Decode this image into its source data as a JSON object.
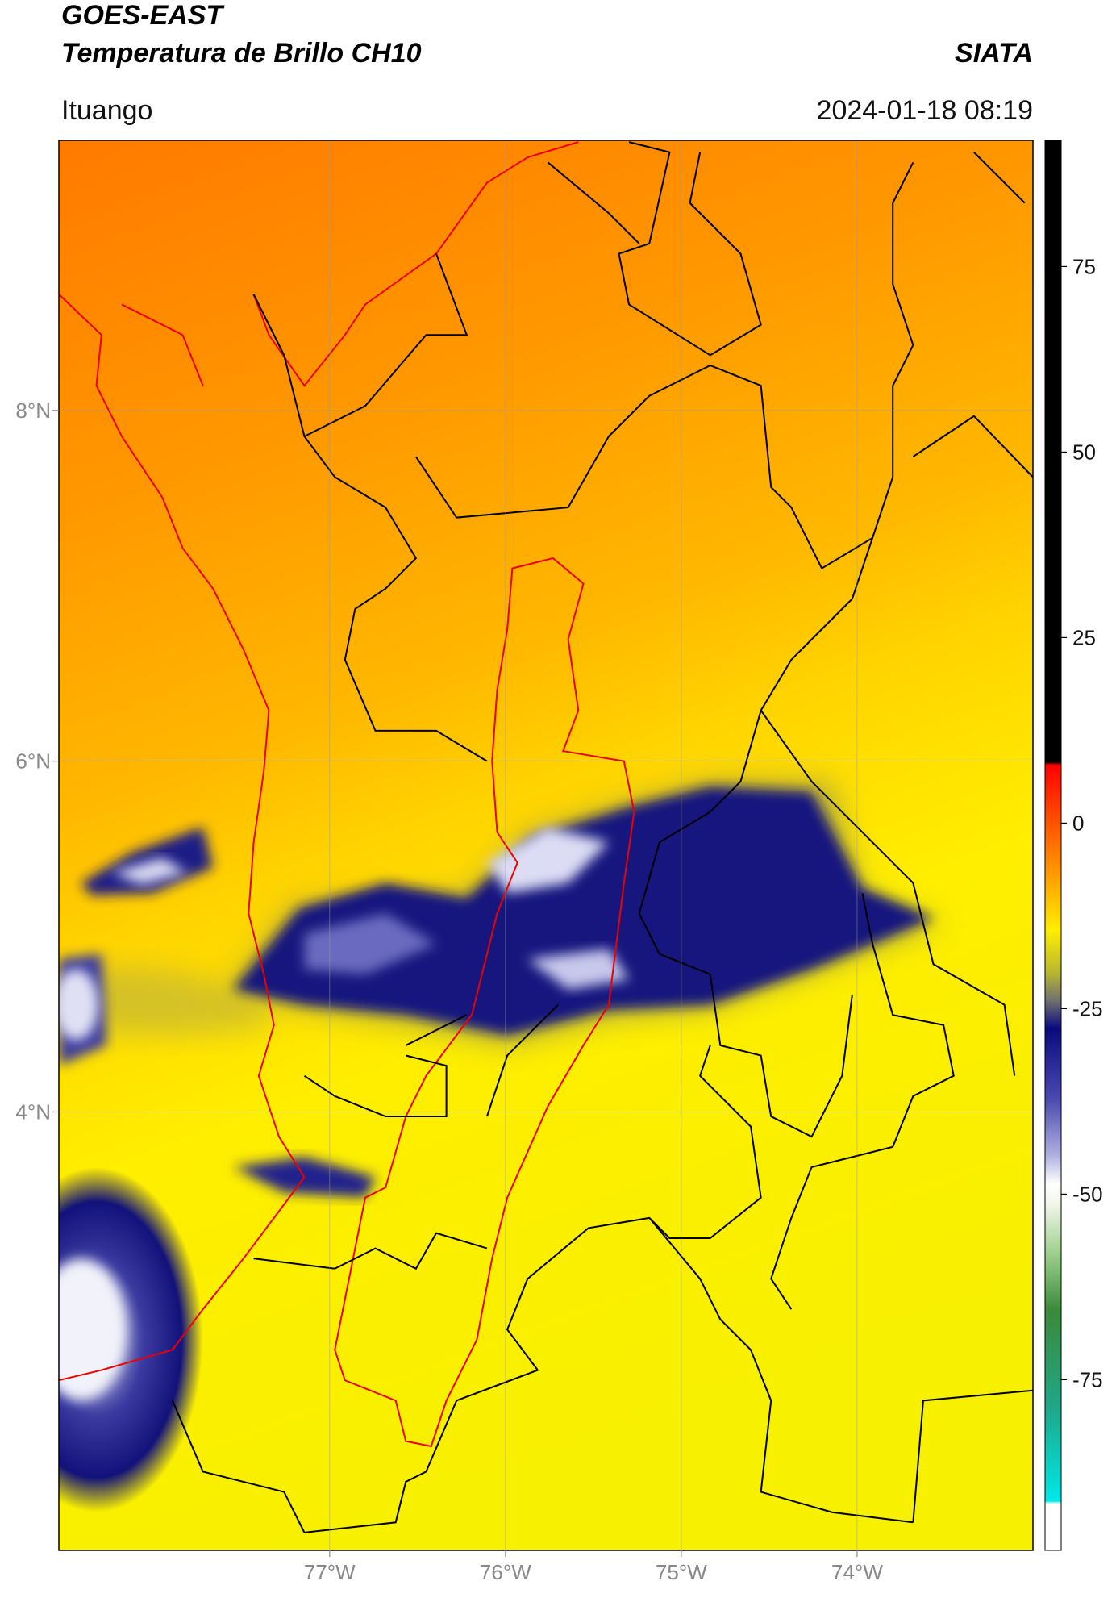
{
  "header": {
    "title_lines": [
      "GOES-EAST",
      "Temperatura de Brillo CH10"
    ],
    "brand": "SIATA",
    "location": "Ituango",
    "datetime": "2024-01-18 08:19"
  },
  "map": {
    "xlim": [
      -78.54,
      -73.0
    ],
    "ylim": [
      1.5,
      9.54
    ],
    "xticks": [
      {
        "value": -77,
        "label": "77°W"
      },
      {
        "value": -76,
        "label": "76°W"
      },
      {
        "value": -75,
        "label": "75°W"
      },
      {
        "value": -74,
        "label": "74°W"
      }
    ],
    "yticks": [
      {
        "value": 8,
        "label": "8°N"
      },
      {
        "value": 6,
        "label": "6°N"
      },
      {
        "value": 4,
        "label": "4°N"
      }
    ]
  },
  "colorbar": {
    "lim": [
      -98,
      92
    ],
    "ticks": [
      75,
      50,
      25,
      0,
      -25,
      -50,
      -75
    ]
  }
}
